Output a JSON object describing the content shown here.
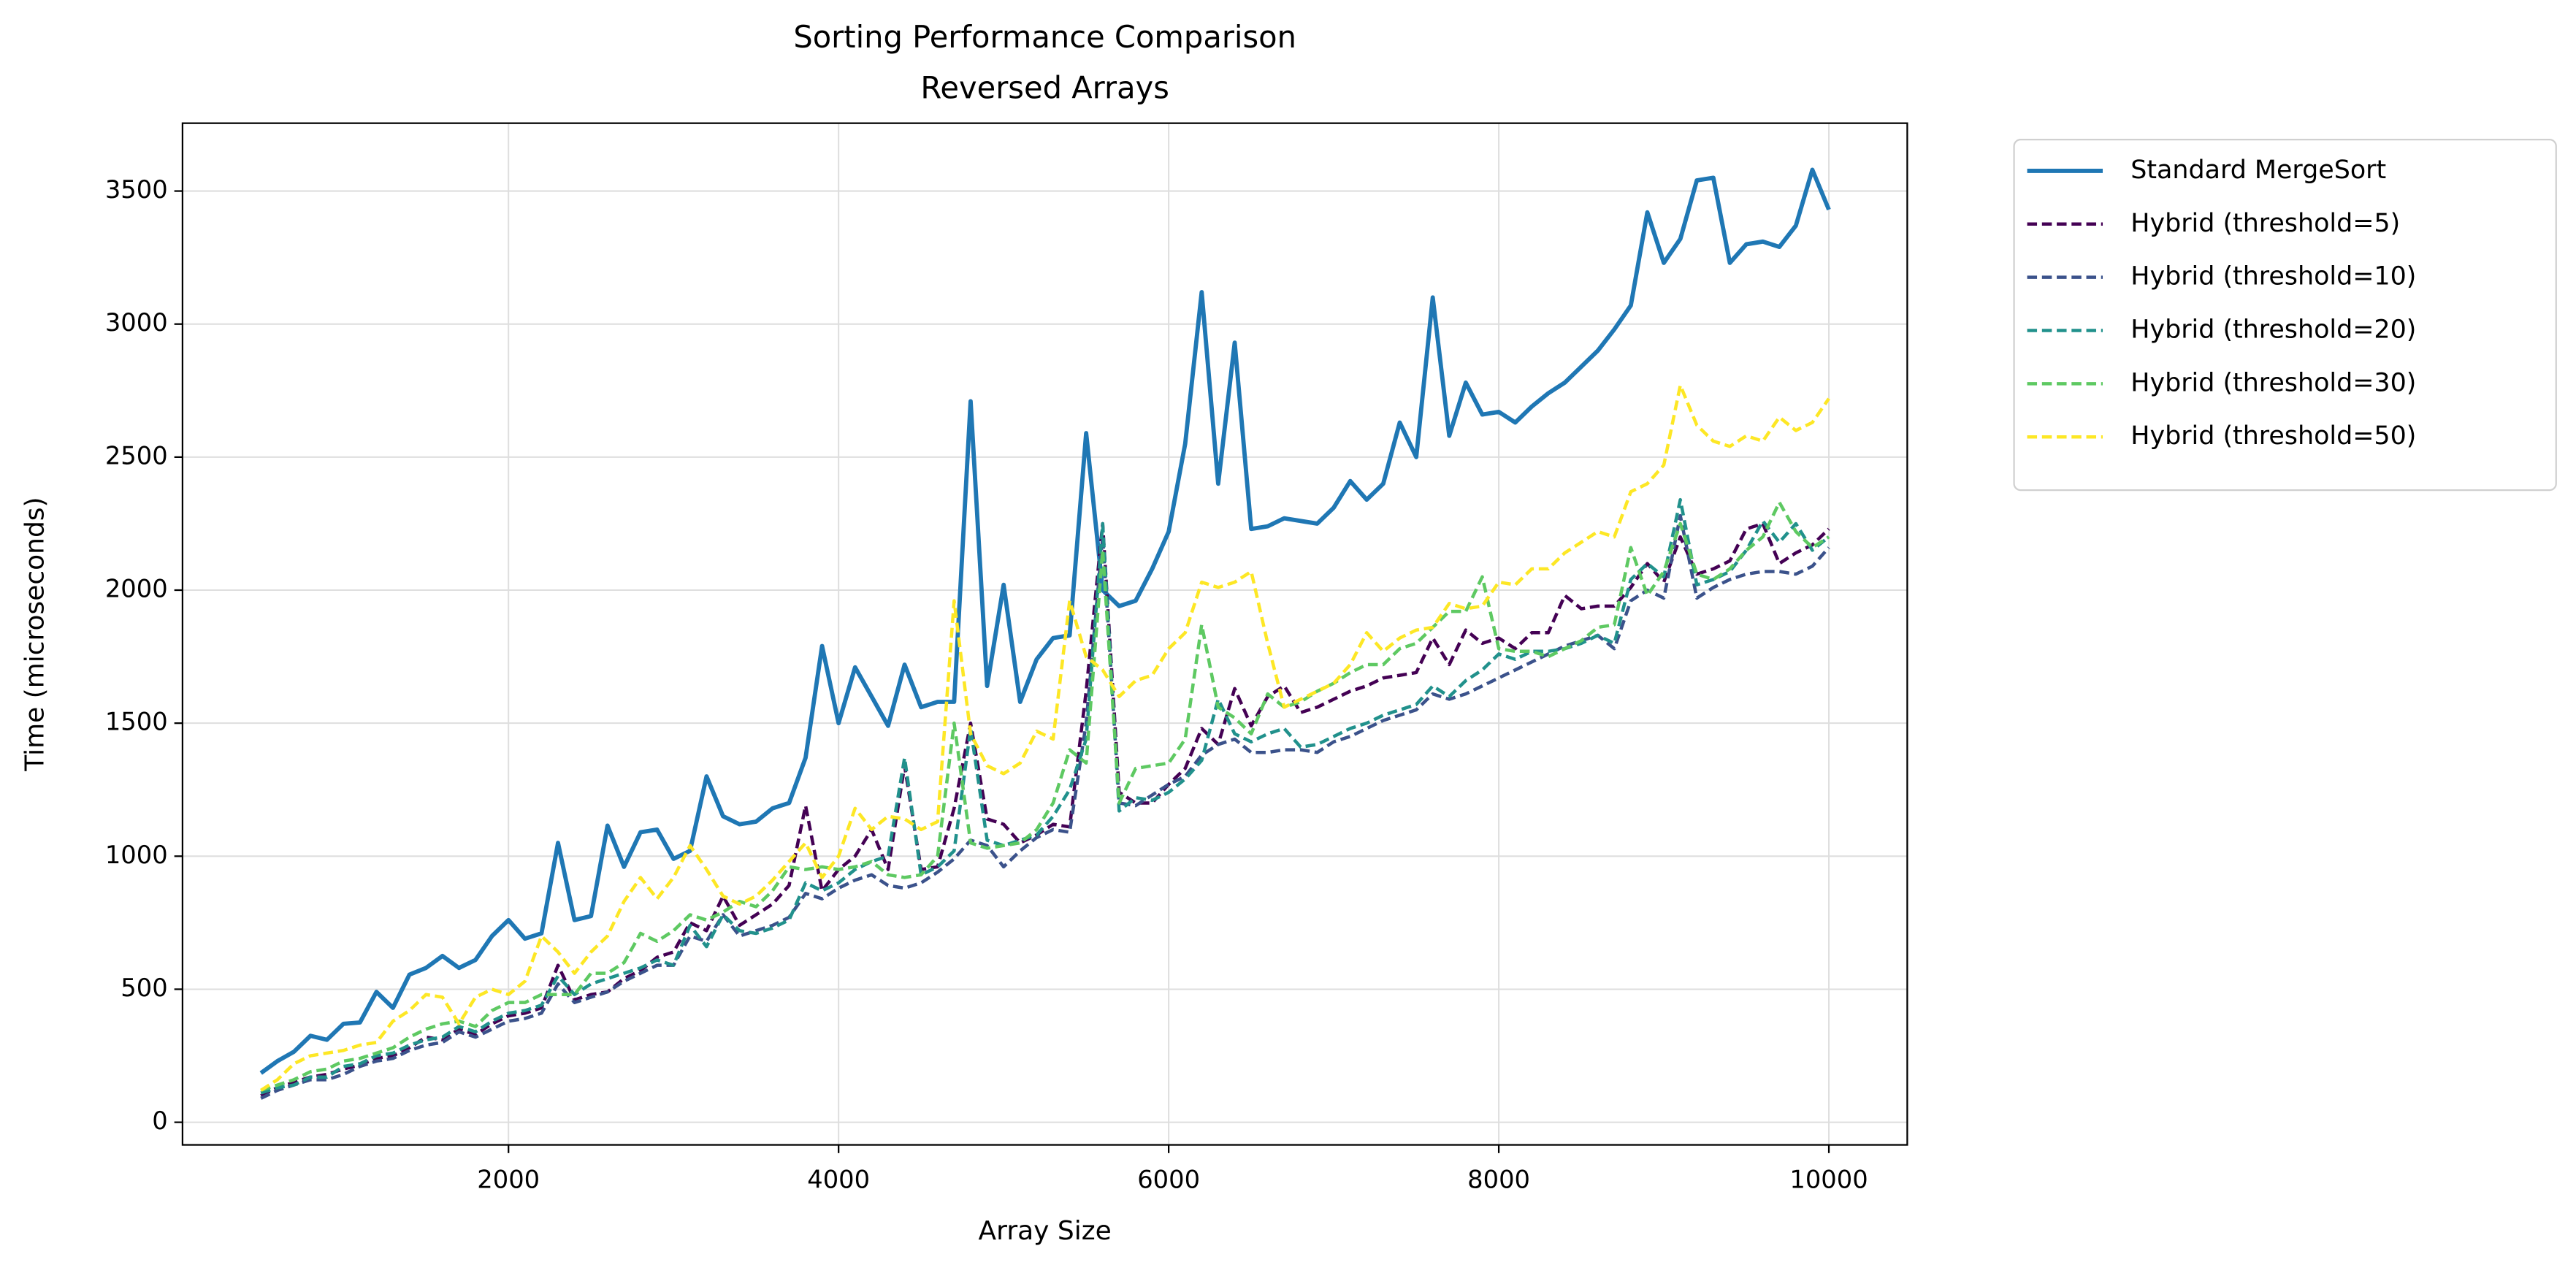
{
  "chart_data": {
    "type": "line",
    "title": "Sorting Performance Comparison",
    "subtitle": "Reversed Arrays",
    "x_label": "Array Size",
    "y_label": "Time (microseconds)",
    "x": [
      500,
      600,
      700,
      800,
      900,
      1000,
      1100,
      1200,
      1300,
      1400,
      1500,
      1600,
      1700,
      1800,
      1900,
      2000,
      2100,
      2200,
      2300,
      2400,
      2500,
      2600,
      2700,
      2800,
      2900,
      3000,
      3100,
      3200,
      3300,
      3400,
      3500,
      3600,
      3700,
      3800,
      3900,
      4000,
      4100,
      4200,
      4300,
      4400,
      4500,
      4600,
      4700,
      4800,
      4900,
      5000,
      5100,
      5200,
      5300,
      5400,
      5500,
      5600,
      5700,
      5800,
      5900,
      6000,
      6100,
      6200,
      6300,
      6400,
      6500,
      6600,
      6700,
      6800,
      6900,
      7000,
      7100,
      7200,
      7300,
      7400,
      7500,
      7600,
      7700,
      7800,
      7900,
      8000,
      8100,
      8200,
      8300,
      8400,
      8500,
      8600,
      8700,
      8800,
      8900,
      9000,
      9100,
      9200,
      9300,
      9400,
      9500,
      9600,
      9700,
      9800,
      9900,
      10000
    ],
    "series": [
      {
        "name": "Standard MergeSort",
        "color": "#1f77b4",
        "linestyle": "solid",
        "values": [
          185,
          230,
          265,
          325,
          310,
          370,
          375,
          490,
          430,
          555,
          580,
          625,
          580,
          610,
          700,
          760,
          690,
          710,
          1050,
          760,
          775,
          1115,
          960,
          1090,
          1100,
          990,
          1020,
          1300,
          1150,
          1120,
          1130,
          1180,
          1200,
          1370,
          1790,
          1500,
          1710,
          1600,
          1490,
          1720,
          1560,
          1580,
          1580,
          2710,
          1640,
          2020,
          1580,
          1740,
          1820,
          1830,
          2590,
          2000,
          1940,
          1960,
          2080,
          2220,
          2550,
          3120,
          2400,
          2930,
          2230,
          2240,
          2270,
          2260,
          2250,
          2310,
          2410,
          2340,
          2400,
          2630,
          2500,
          3100,
          2580,
          2780,
          2660,
          2670,
          2630,
          2690,
          2740,
          2780,
          2840,
          2900,
          2980,
          3070,
          3420,
          3230,
          3320,
          3540,
          3550,
          3230,
          3300,
          3310,
          3290,
          3370,
          3580,
          3430
        ]
      },
      {
        "name": "Hybrid (threshold=5)",
        "color": "#440154",
        "linestyle": "dashed",
        "values": [
          100,
          130,
          150,
          170,
          180,
          200,
          215,
          240,
          250,
          280,
          320,
          310,
          350,
          330,
          370,
          400,
          410,
          430,
          590,
          460,
          480,
          490,
          540,
          570,
          620,
          640,
          750,
          720,
          850,
          740,
          780,
          820,
          890,
          1190,
          870,
          950,
          1000,
          1100,
          950,
          1340,
          950,
          960,
          1180,
          1500,
          1140,
          1120,
          1050,
          1080,
          1120,
          1110,
          1620,
          2250,
          1240,
          1200,
          1200,
          1270,
          1330,
          1480,
          1420,
          1630,
          1490,
          1600,
          1640,
          1540,
          1560,
          1590,
          1620,
          1640,
          1670,
          1680,
          1690,
          1820,
          1720,
          1850,
          1800,
          1820,
          1780,
          1840,
          1840,
          1980,
          1930,
          1940,
          1940,
          2010,
          2100,
          2030,
          2200,
          2060,
          2080,
          2110,
          2230,
          2250,
          2100,
          2140,
          2170,
          2230
        ]
      },
      {
        "name": "Hybrid (threshold=10)",
        "color": "#3b528b",
        "linestyle": "dashed",
        "values": [
          90,
          120,
          140,
          160,
          160,
          180,
          210,
          230,
          240,
          270,
          290,
          300,
          340,
          320,
          350,
          380,
          390,
          410,
          520,
          450,
          470,
          490,
          530,
          560,
          590,
          590,
          700,
          680,
          780,
          700,
          720,
          740,
          770,
          860,
          840,
          880,
          910,
          930,
          890,
          880,
          900,
          940,
          990,
          1060,
          1040,
          960,
          1020,
          1070,
          1100,
          1090,
          1500,
          2200,
          1200,
          1190,
          1230,
          1270,
          1300,
          1380,
          1420,
          1440,
          1390,
          1390,
          1400,
          1400,
          1390,
          1430,
          1450,
          1480,
          1510,
          1530,
          1550,
          1610,
          1590,
          1610,
          1640,
          1670,
          1700,
          1730,
          1760,
          1790,
          1810,
          1830,
          1780,
          1960,
          2000,
          1970,
          2280,
          1970,
          2010,
          2040,
          2060,
          2070,
          2070,
          2060,
          2090,
          2160
        ]
      },
      {
        "name": "Hybrid (threshold=20)",
        "color": "#21918c",
        "linestyle": "dashed",
        "values": [
          110,
          130,
          140,
          170,
          170,
          210,
          220,
          250,
          260,
          290,
          310,
          320,
          360,
          340,
          380,
          410,
          420,
          440,
          550,
          480,
          520,
          540,
          560,
          580,
          610,
          590,
          740,
          660,
          780,
          720,
          710,
          730,
          760,
          900,
          870,
          900,
          950,
          980,
          1000,
          1370,
          930,
          960,
          1020,
          1480,
          1060,
          1040,
          1060,
          1080,
          1150,
          1250,
          1440,
          2250,
          1170,
          1220,
          1210,
          1240,
          1290,
          1360,
          1590,
          1460,
          1430,
          1460,
          1480,
          1410,
          1420,
          1450,
          1480,
          1500,
          1530,
          1550,
          1570,
          1640,
          1600,
          1660,
          1700,
          1760,
          1740,
          1770,
          1770,
          1780,
          1800,
          1830,
          1800,
          2040,
          2100,
          2050,
          2340,
          2020,
          2040,
          2070,
          2150,
          2260,
          2180,
          2250,
          2150,
          2200
        ]
      },
      {
        "name": "Hybrid (threshold=30)",
        "color": "#5ec962",
        "linestyle": "dashed",
        "values": [
          120,
          140,
          160,
          190,
          200,
          230,
          240,
          260,
          280,
          320,
          350,
          370,
          380,
          360,
          420,
          450,
          450,
          480,
          480,
          480,
          560,
          560,
          600,
          710,
          680,
          720,
          780,
          760,
          790,
          830,
          810,
          870,
          960,
          950,
          960,
          950,
          960,
          980,
          930,
          920,
          930,
          1000,
          1500,
          1050,
          1030,
          1040,
          1050,
          1100,
          1200,
          1400,
          1350,
          2150,
          1200,
          1330,
          1340,
          1350,
          1440,
          1870,
          1560,
          1520,
          1460,
          1610,
          1560,
          1580,
          1620,
          1650,
          1690,
          1720,
          1720,
          1780,
          1800,
          1860,
          1920,
          1920,
          2050,
          1780,
          1770,
          1770,
          1750,
          1780,
          1810,
          1860,
          1870,
          2160,
          1980,
          2070,
          2250,
          2060,
          2040,
          2080,
          2150,
          2200,
          2330,
          2220,
          2160,
          2200
        ]
      },
      {
        "name": "Hybrid (threshold=50)",
        "color": "#fde725",
        "linestyle": "dashed",
        "values": [
          120,
          160,
          220,
          250,
          260,
          270,
          290,
          300,
          380,
          420,
          480,
          470,
          370,
          470,
          500,
          480,
          530,
          700,
          640,
          560,
          640,
          700,
          830,
          920,
          840,
          920,
          1040,
          950,
          850,
          820,
          850,
          910,
          980,
          1050,
          920,
          1000,
          1180,
          1100,
          1150,
          1140,
          1100,
          1130,
          1960,
          1460,
          1340,
          1310,
          1350,
          1470,
          1440,
          1960,
          1750,
          1700,
          1600,
          1660,
          1680,
          1780,
          1840,
          2030,
          2010,
          2030,
          2070,
          1800,
          1560,
          1590,
          1620,
          1650,
          1720,
          1840,
          1770,
          1820,
          1850,
          1860,
          1950,
          1930,
          1940,
          2030,
          2020,
          2080,
          2080,
          2140,
          2180,
          2220,
          2200,
          2370,
          2400,
          2470,
          2770,
          2620,
          2560,
          2540,
          2580,
          2560,
          2650,
          2600,
          2630,
          2720
        ]
      }
    ],
    "xlim": [
      25,
      10475
    ],
    "ylim": [
      -85,
      3755
    ],
    "xticks": [
      2000,
      4000,
      6000,
      8000,
      10000
    ],
    "yticks": [
      0,
      500,
      1000,
      1500,
      2000,
      2500,
      3000,
      3500
    ],
    "grid": true,
    "legend": "outside upper right"
  }
}
